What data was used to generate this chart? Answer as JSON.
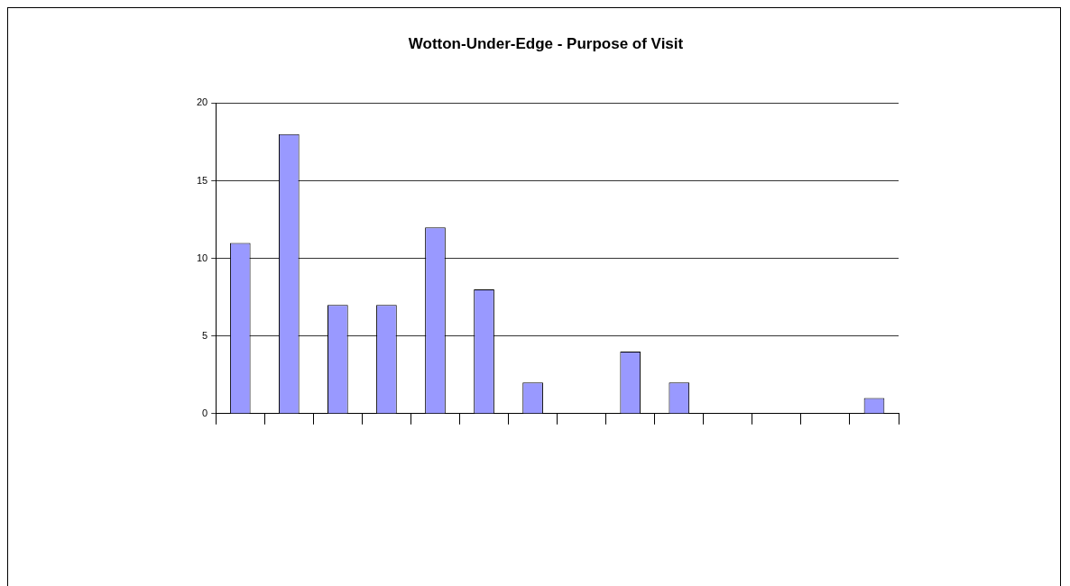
{
  "chart_data": {
    "type": "bar",
    "title": "Wotton-Under-Edge - Purpose of Visit",
    "categories": [
      null,
      null,
      null,
      null,
      null,
      null,
      null,
      null,
      null,
      null,
      null,
      null,
      null,
      null
    ],
    "values": [
      11,
      18,
      7,
      7,
      12,
      8,
      2,
      0,
      4,
      2,
      0,
      0,
      0,
      1
    ],
    "color": "#9999ff",
    "ylim": [
      0,
      20
    ],
    "yticks": [
      0,
      5,
      10,
      15,
      20
    ],
    "grid": "y"
  }
}
